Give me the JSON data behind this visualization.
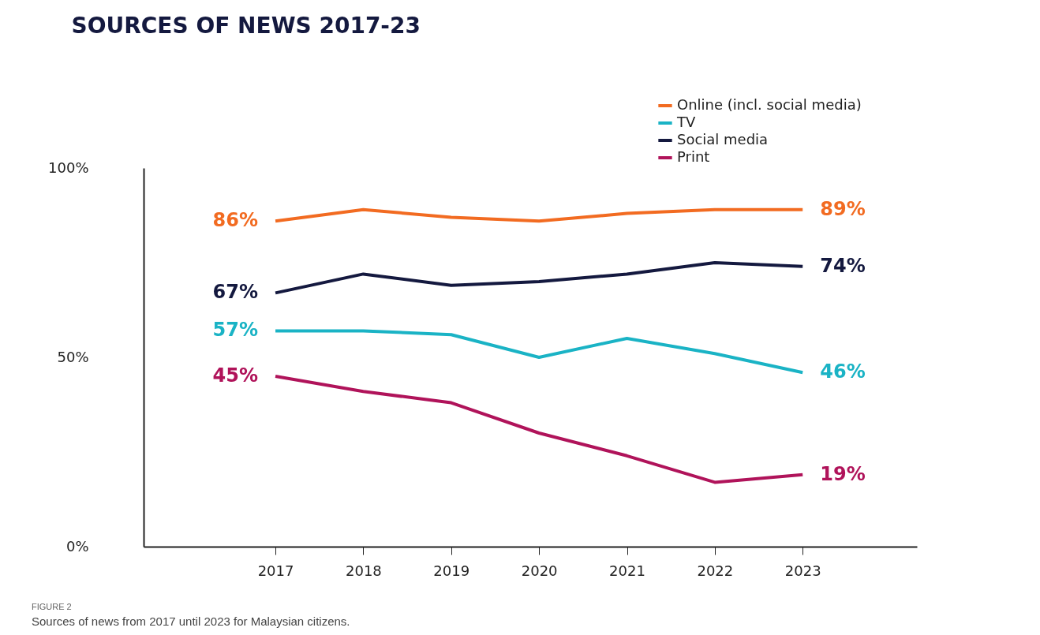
{
  "chart_data": {
    "type": "line",
    "title": "SOURCES OF NEWS 2017-23",
    "categories": [
      "2017",
      "2018",
      "2019",
      "2020",
      "2021",
      "2022",
      "2023"
    ],
    "series": [
      {
        "name": "Online (incl. social media)",
        "color": "#f26b21",
        "values": [
          86,
          89,
          87,
          86,
          88,
          89,
          89
        ],
        "value_labels": [
          "86%",
          null,
          null,
          null,
          null,
          null,
          "89%"
        ]
      },
      {
        "name": "TV",
        "color": "#1ab3c5",
        "values": [
          57,
          57,
          56,
          50,
          55,
          51,
          46
        ],
        "value_labels": [
          "57%",
          null,
          null,
          null,
          null,
          null,
          "46%"
        ]
      },
      {
        "name": "Social media",
        "color": "#14193f",
        "values": [
          67,
          72,
          69,
          70,
          72,
          75,
          74
        ],
        "value_labels": [
          "67%",
          null,
          null,
          null,
          null,
          null,
          "74%"
        ]
      },
      {
        "name": "Print",
        "color": "#b0135a",
        "values": [
          45,
          41,
          38,
          30,
          24,
          17,
          19
        ],
        "value_labels": [
          "45%",
          null,
          null,
          null,
          null,
          null,
          "19%"
        ]
      }
    ],
    "ylim": [
      0,
      100
    ],
    "yticks": [
      {
        "value": 0,
        "label": "0%"
      },
      {
        "value": 50,
        "label": "50%"
      },
      {
        "value": 100,
        "label": "100%"
      }
    ],
    "grid": false,
    "legend": "top right",
    "marker": "none",
    "line_style": "solid",
    "annotations": [
      "FIGURE 2",
      "Sources of news from 2017 until 2023 for Malaysian citizens."
    ]
  }
}
